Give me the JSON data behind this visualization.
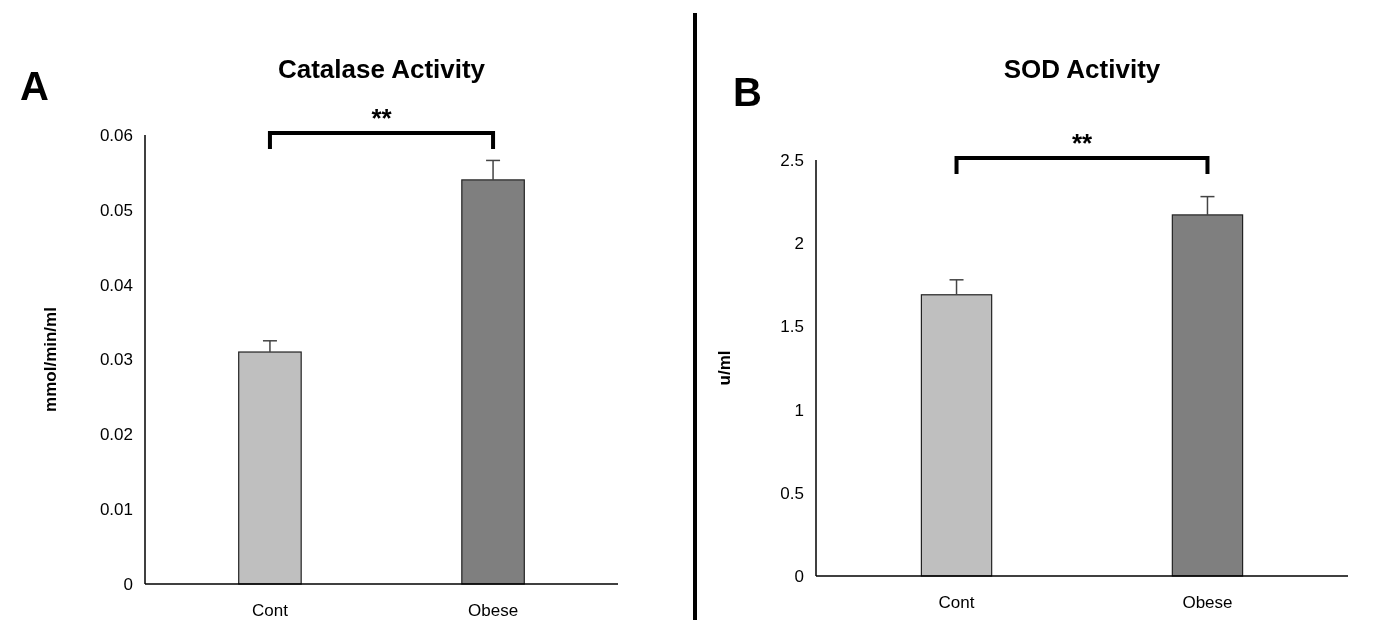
{
  "chart_data": [
    {
      "type": "bar",
      "title": "Catalase Activity",
      "ylabel": "mmol/min/ml",
      "categories": [
        "Cont",
        "Obese"
      ],
      "values": [
        0.031,
        0.054
      ],
      "colors": [
        "#bfbfbf",
        "#7f7f7f"
      ],
      "errors": [
        [
          0.031,
          0.0325
        ],
        [
          0.054,
          0.0566
        ]
      ],
      "ylim": [
        0,
        0.06
      ],
      "yticks": [
        0,
        0.01,
        0.02,
        0.03,
        0.04,
        0.05,
        0.06
      ],
      "annotations": [
        "A",
        "**"
      ]
    },
    {
      "type": "bar",
      "title": "SOD Activity",
      "ylabel": "u/ml",
      "categories": [
        "Cont",
        "Obese"
      ],
      "values": [
        1.69,
        2.17
      ],
      "colors": [
        "#bfbfbf",
        "#7f7f7f"
      ],
      "errors": [
        [
          1.69,
          1.78
        ],
        [
          2.17,
          2.28
        ]
      ],
      "ylim": [
        0,
        2.5
      ],
      "yticks": [
        0,
        0.5,
        1,
        1.5,
        2,
        2.5
      ],
      "annotations": [
        "B",
        "**"
      ]
    }
  ]
}
